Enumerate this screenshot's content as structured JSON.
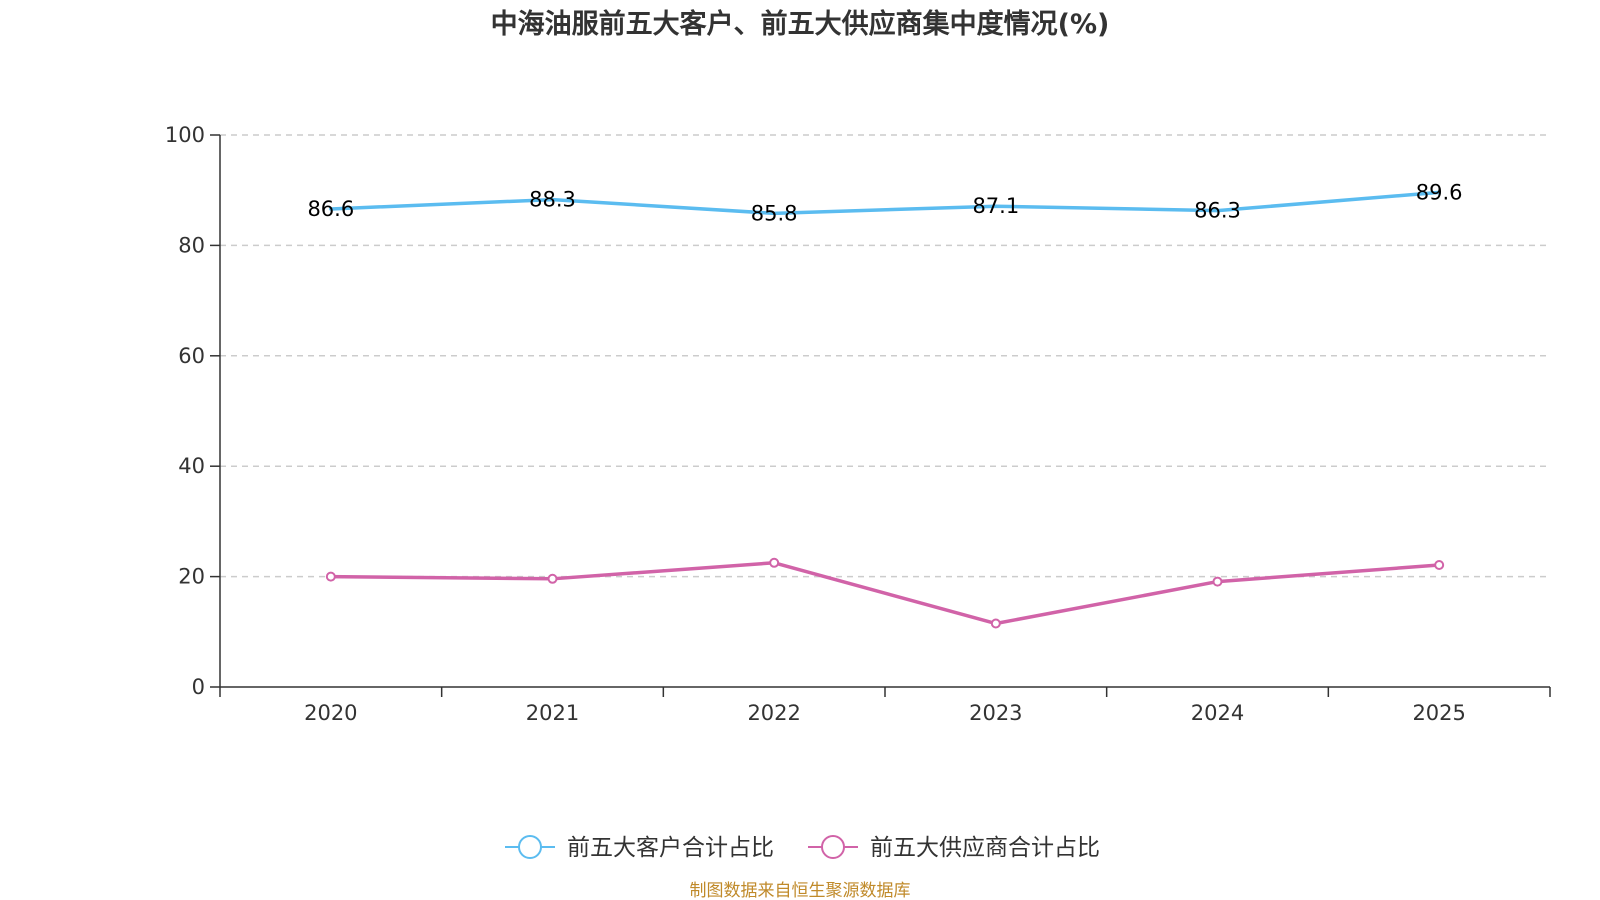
{
  "chart_data": {
    "type": "line",
    "title": "中海油服前五大客户、前五大供应商集中度情况(%)",
    "categories": [
      "2020",
      "2021",
      "2022",
      "2023",
      "2024",
      "2025"
    ],
    "ylim": [
      0,
      100
    ],
    "yticks": [
      0,
      20,
      40,
      60,
      80,
      100
    ],
    "grid": true,
    "legend_position": "bottom",
    "series": [
      {
        "name": "前五大客户合计占比",
        "color": "#5bbcf0",
        "values": [
          86.6,
          88.3,
          85.8,
          87.1,
          86.3,
          89.6
        ],
        "labels": [
          "86.6",
          "88.3",
          "85.8",
          "87.1",
          "86.3",
          "89.6"
        ],
        "show_labels": true,
        "show_markers": false
      },
      {
        "name": "前五大供应商合计占比",
        "color": "#d163a8",
        "values": [
          20.0,
          19.6,
          22.5,
          11.5,
          19.1,
          22.1
        ],
        "show_labels": false,
        "show_markers": true
      }
    ]
  },
  "source": {
    "text": "制图数据来自恒生聚源数据库",
    "color": "#c08a2a"
  }
}
